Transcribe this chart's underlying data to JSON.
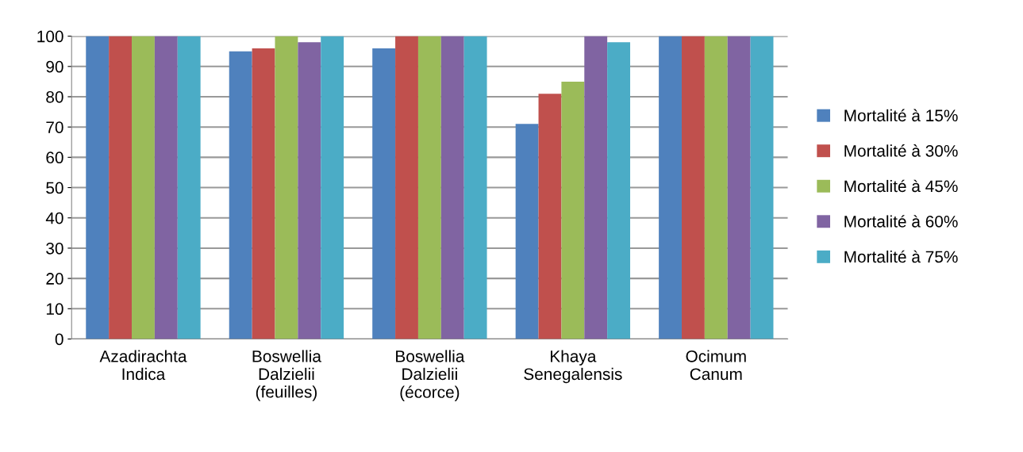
{
  "chart_data": {
    "type": "bar",
    "categories": [
      "Azadirachta\nIndica",
      "Boswellia\nDalzielii\n(feuilles)",
      "Boswellia\nDalzielii\n(écorce)",
      "Khaya\nSenegalensis",
      "Ocimum\nCanum"
    ],
    "series": [
      {
        "name": "Mortalité à 15%",
        "color": "#4f81bd",
        "values": [
          100,
          95,
          96,
          71,
          100
        ]
      },
      {
        "name": "Mortalité à 30%",
        "color": "#c0504d",
        "values": [
          100,
          96,
          100,
          81,
          100
        ]
      },
      {
        "name": "Mortalité à 45%",
        "color": "#9bbb59",
        "values": [
          100,
          100,
          100,
          85,
          100
        ]
      },
      {
        "name": "Mortalité à 60%",
        "color": "#8064a2",
        "values": [
          100,
          98,
          100,
          100,
          100
        ]
      },
      {
        "name": "Mortalité à 75%",
        "color": "#4bacc6",
        "values": [
          100,
          100,
          100,
          98,
          100
        ]
      }
    ],
    "ylim": [
      0,
      100
    ],
    "yticks": [
      0,
      10,
      20,
      30,
      40,
      50,
      60,
      70,
      80,
      90,
      100
    ],
    "grid": "y",
    "legend": "right"
  }
}
